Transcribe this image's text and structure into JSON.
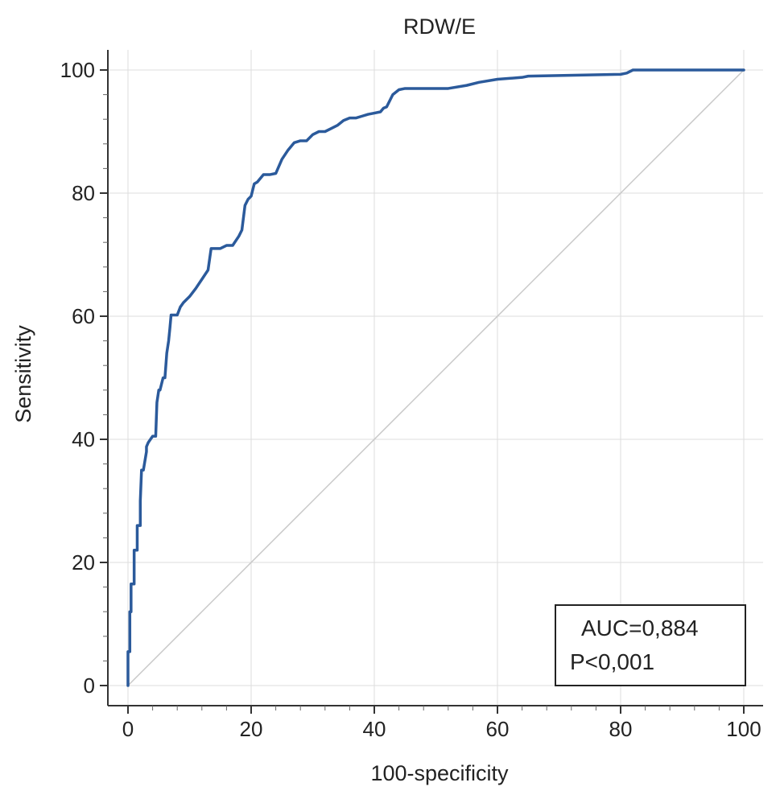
{
  "chart_data": {
    "type": "line",
    "title": "RDW/E",
    "xlabel": "100-specificity",
    "ylabel": "Sensitivity",
    "xlim": [
      0,
      100
    ],
    "ylim": [
      0,
      100
    ],
    "xticks": [
      0,
      20,
      40,
      60,
      80,
      100
    ],
    "yticks": [
      0,
      20,
      40,
      60,
      80,
      100
    ],
    "grid": true,
    "colors": {
      "roc": "#2b5a9b",
      "reference": "#c8c8c8",
      "grid": "#dddddd"
    },
    "series": [
      {
        "x": [
          0,
          0,
          0.3,
          0.3,
          0.5,
          0.5,
          1.0,
          1.0,
          1.5,
          1.5,
          2.0,
          2.0,
          2.2,
          2.5,
          3.0,
          3.0,
          3.3,
          4.0,
          4.5,
          4.7,
          5.0,
          5.2,
          5.7,
          6.0,
          6.3,
          6.6,
          6.8,
          7.0,
          7.4,
          8.0,
          8.5,
          9.0,
          10.0,
          11.0,
          12.0,
          13.0,
          13.5,
          15.0,
          16.0,
          17.0,
          18.0,
          18.5,
          19.0,
          19.5,
          20.0,
          20.5,
          21.0,
          22.0,
          23.0,
          24.0,
          25.0,
          26.0,
          27.0,
          28.0,
          29.0,
          30.0,
          31.0,
          32.0,
          33.0,
          34.0,
          35.0,
          36.0,
          37.0,
          38.0,
          39.0,
          40.0,
          41.0,
          41.5,
          42.0,
          43.0,
          44.0,
          45.0,
          50.0,
          52.0,
          55.0,
          57.0,
          60.0,
          64.0,
          65.0,
          80.0,
          81.0,
          82.0,
          85.0,
          100.0
        ],
        "y": [
          0,
          5.5,
          5.5,
          12,
          12,
          16.5,
          16.5,
          22,
          22,
          26,
          26,
          30,
          35,
          35,
          38,
          38.8,
          39.5,
          40.5,
          40.5,
          46,
          48,
          48,
          50,
          50,
          54,
          56,
          58,
          60.2,
          60.2,
          60.2,
          61.5,
          62.2,
          63.2,
          64.5,
          66,
          67.5,
          71,
          71,
          71.5,
          71.5,
          73,
          74,
          78,
          79,
          79.5,
          81.5,
          81.8,
          83,
          83,
          83.2,
          85.5,
          87,
          88.2,
          88.5,
          88.5,
          89.5,
          90,
          90,
          90.5,
          91,
          91.8,
          92.2,
          92.2,
          92.5,
          92.8,
          93,
          93.2,
          93.8,
          94,
          96,
          96.8,
          97,
          97,
          97,
          97.5,
          98,
          98.5,
          98.8,
          99,
          99.3,
          99.5,
          100,
          100,
          100
        ]
      },
      {
        "x": [
          0,
          100
        ],
        "y": [
          0,
          100
        ]
      }
    ],
    "annotations": {
      "auc": "AUC=0,884",
      "p": "P<0,001"
    },
    "legend_placement": "bottom-right"
  }
}
